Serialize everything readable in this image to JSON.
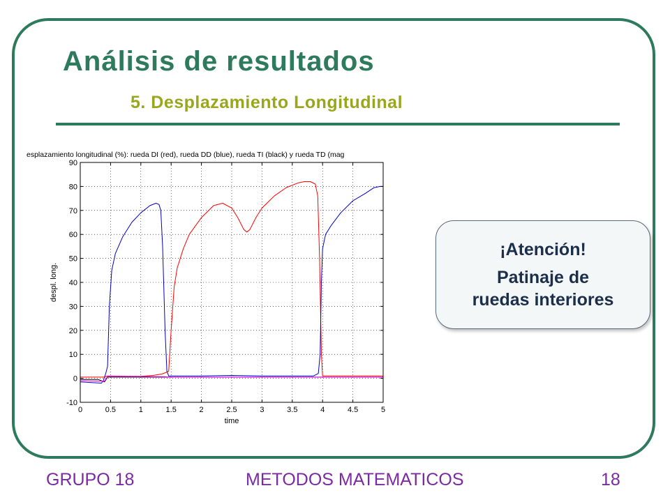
{
  "slide": {
    "title": "Análisis de resultados",
    "subtitle": "5. Desplazamiento Longitudinal",
    "footer_left": "GRUPO 18",
    "footer_center": "METODOS MATEMATICOS",
    "footer_right": "18"
  },
  "callout": {
    "heading": "¡Atención!",
    "line1": "Patinaje de",
    "line2": "ruedas interiores"
  },
  "chart_data": {
    "type": "line",
    "title": "esplazamiento longitudinal (%): rueda DI (red), rueda DD (blue), rueda TI (black) y rueda TD (mag",
    "xlabel": "time",
    "ylabel": "despl. long.",
    "xlim": [
      0,
      5
    ],
    "ylim": [
      -10,
      90
    ],
    "xticks": [
      "0",
      "0.5",
      "1",
      "1.5",
      "2",
      "2.5",
      "3",
      "3.5",
      "4",
      "4.5",
      "5"
    ],
    "yticks": [
      "-10",
      "0",
      "10",
      "20",
      "30",
      "40",
      "50",
      "60",
      "70",
      "80",
      "90"
    ],
    "grid": true,
    "series": [
      {
        "name": "rueda DI",
        "color": "#ff0000",
        "x": [
          0,
          0.4,
          0.45,
          0.8,
          1.0,
          1.2,
          1.35,
          1.42,
          1.46,
          1.5,
          1.55,
          1.6,
          1.7,
          1.8,
          2.0,
          2.2,
          2.35,
          2.5,
          2.6,
          2.7,
          2.75,
          2.8,
          2.9,
          3.0,
          3.2,
          3.4,
          3.6,
          3.7,
          3.8,
          3.88,
          3.92,
          3.95,
          3.98,
          4.0,
          5.0
        ],
        "y": [
          0.5,
          0.5,
          1.0,
          0.8,
          0.8,
          1.2,
          1.8,
          2.5,
          3,
          20,
          38,
          46,
          54,
          60,
          67,
          72,
          73,
          71,
          67,
          62,
          61,
          62,
          67,
          71,
          76,
          79.5,
          81.5,
          82,
          82,
          81,
          76,
          50,
          10,
          1,
          1
        ]
      },
      {
        "name": "rueda DD",
        "color": "#0000cc",
        "x": [
          0,
          0.35,
          0.38,
          0.42,
          0.45,
          0.48,
          0.52,
          0.58,
          0.7,
          0.85,
          1.0,
          1.15,
          1.25,
          1.3,
          1.33,
          1.36,
          1.4,
          1.43,
          1.46,
          1.5,
          2.0,
          2.5,
          3.0,
          3.5,
          3.85,
          3.93,
          3.96,
          3.98,
          4.0,
          4.05,
          4.15,
          4.3,
          4.5,
          4.7,
          4.85,
          4.95,
          5.0
        ],
        "y": [
          -1.5,
          -2,
          -1,
          2,
          5,
          30,
          45,
          52,
          59,
          65,
          69,
          72,
          73,
          72.5,
          70,
          55,
          20,
          3,
          1,
          1,
          1,
          1.2,
          1,
          1,
          1,
          2,
          10,
          40,
          54,
          60,
          64,
          69,
          74,
          77,
          79.5,
          80,
          80
        ]
      },
      {
        "name": "rueda TI",
        "color": "#000000",
        "x": [
          0,
          0.3,
          0.4,
          0.45,
          5.0
        ],
        "y": [
          -0.5,
          -0.5,
          -1.5,
          0.5,
          0.5
        ]
      },
      {
        "name": "rueda TD",
        "color": "#ff00ff",
        "x": [
          0,
          0.4,
          0.45,
          1.4,
          1.5,
          4.0,
          5.0
        ],
        "y": [
          -1,
          -1.2,
          0.8,
          0.7,
          0.5,
          0.5,
          0.5
        ]
      }
    ]
  }
}
